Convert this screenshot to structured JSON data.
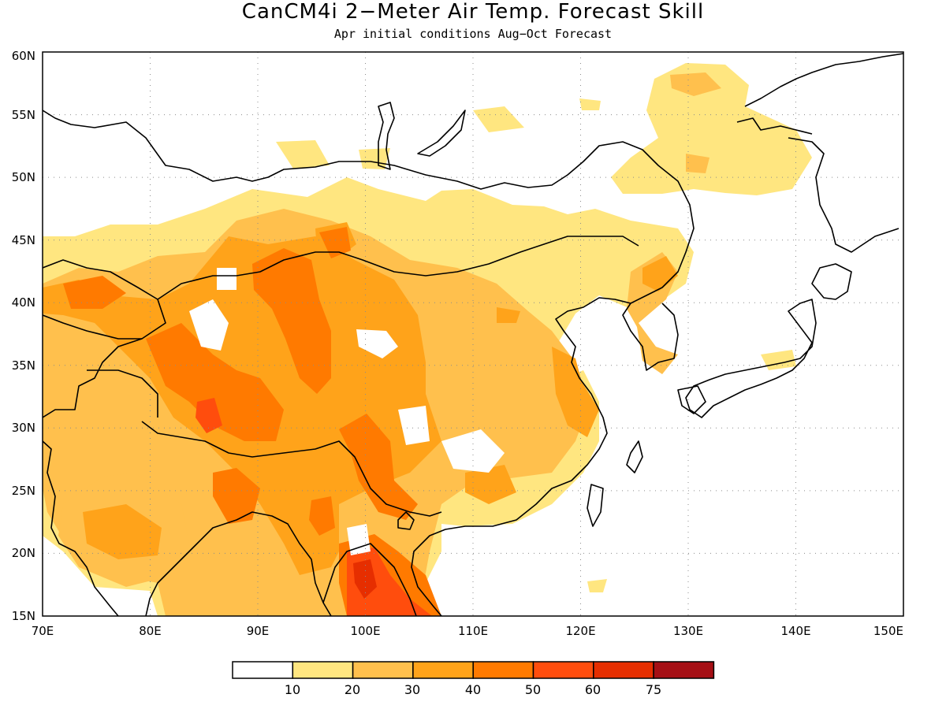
{
  "title": "CanCM4i 2−Meter Air Temp. Forecast Skill",
  "subtitle": "Apr initial conditions  Aug−Oct Forecast",
  "map": {
    "lon_range": [
      70,
      150
    ],
    "lat_range": [
      15,
      60
    ],
    "grid": "dotted",
    "lon_ticks": [
      "70E",
      "80E",
      "90E",
      "100E",
      "110E",
      "120E",
      "130E",
      "140E",
      "150E"
    ],
    "lat_ticks": [
      "15N",
      "20N",
      "25N",
      "30N",
      "35N",
      "40N",
      "45N",
      "50N",
      "55N",
      "60N"
    ]
  },
  "colorbar": {
    "colors": [
      "#ffffff",
      "#ffe680",
      "#ffc04d",
      "#ffa31a",
      "#ff7a00",
      "#ff4d0d",
      "#e62e00",
      "#a50f15"
    ],
    "labels": [
      "10",
      "20",
      "30",
      "40",
      "50",
      "60",
      "75"
    ]
  }
}
